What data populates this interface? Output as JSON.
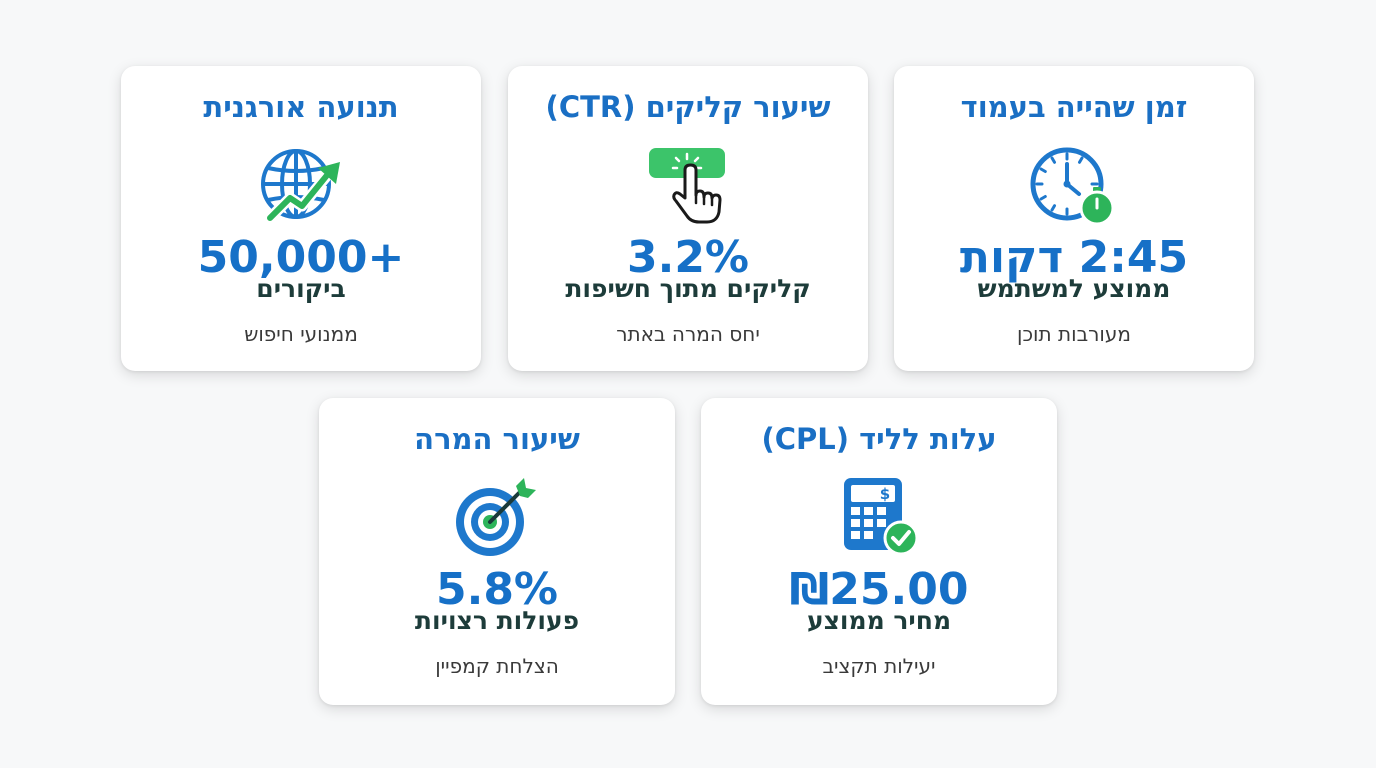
{
  "cards": [
    {
      "title": "זמן שהייה בעמוד",
      "icon": "clock-stopwatch-icon",
      "value": "2:45 דקות",
      "label": "ממוצע למשתמש",
      "sub": "מעורבות תוכן"
    },
    {
      "title": "שיעור קליקים (CTR)",
      "icon": "click-button-icon",
      "value": "3.2%",
      "label": "קליקים מתוך חשיפות",
      "sub": "יחס המרה באתר"
    },
    {
      "title": "תנועה אורגנית",
      "icon": "globe-growth-icon",
      "value": "50,000+",
      "label": "ביקורים",
      "sub": "ממנועי חיפוש"
    },
    {
      "title": "עלות לליד (CPL)",
      "icon": "calculator-check-icon",
      "value": "₪25.00",
      "label": "מחיר ממוצע",
      "sub": "יעילות תקציב"
    },
    {
      "title": "שיעור המרה",
      "icon": "target-arrow-icon",
      "value": "5.8%",
      "label": "פעולות רצויות",
      "sub": "הצלחת קמפיין"
    }
  ],
  "colors": {
    "title": "#1a6fc4",
    "value": "#1670c7",
    "label": "#1d3c3a",
    "accent_green": "#2db45a",
    "icon_blue": "#1e78cc"
  }
}
